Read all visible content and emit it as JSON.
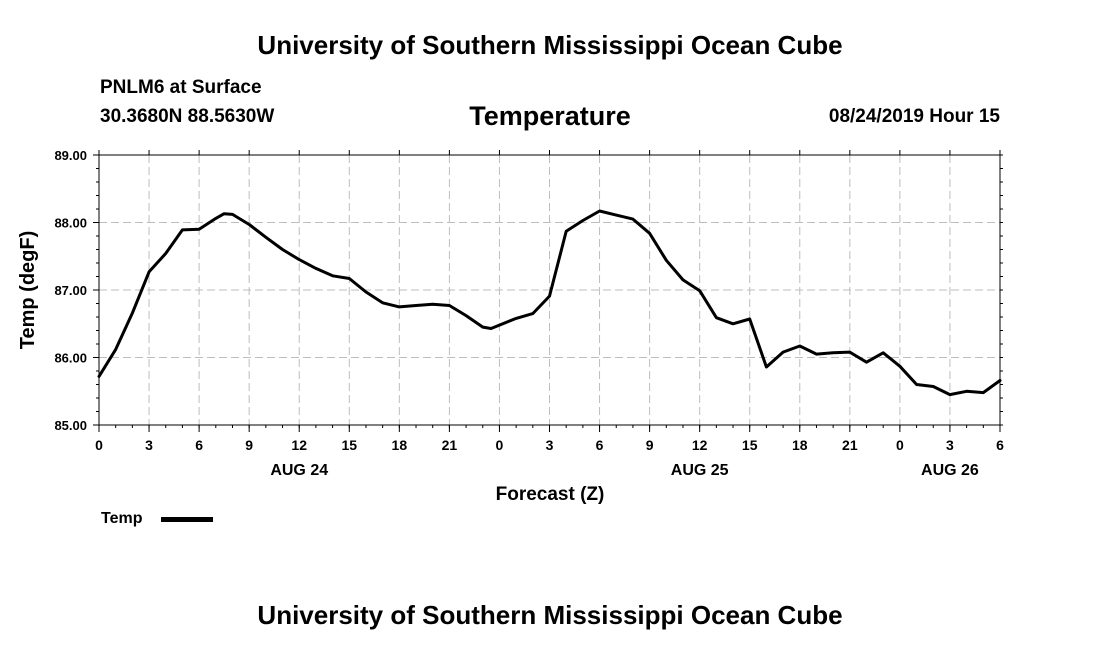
{
  "header": {
    "top_title": "University of Southern Mississippi Ocean Cube",
    "station": "PNLM6 at Surface",
    "coords": "30.3680N 88.5630W",
    "datetime": "08/24/2019 Hour 15",
    "bottom_title": "University of Southern Mississippi Ocean Cube"
  },
  "legend": {
    "label": "Temp"
  },
  "chart_data": {
    "type": "line",
    "title": "Temperature",
    "xlabel": "Forecast (Z)",
    "ylabel": "Temp (degF)",
    "ylim": [
      85.0,
      89.0
    ],
    "xlim": [
      0,
      54
    ],
    "yticks": [
      "85.00",
      "86.00",
      "87.00",
      "88.00",
      "89.00"
    ],
    "xtick_labels": [
      "0",
      "3",
      "6",
      "9",
      "12",
      "15",
      "18",
      "21",
      "0",
      "3",
      "6",
      "9",
      "12",
      "15",
      "18",
      "21",
      "0",
      "3",
      "6"
    ],
    "day_labels": [
      {
        "label": "AUG 24",
        "x": 12
      },
      {
        "label": "AUG 25",
        "x": 36
      },
      {
        "label": "AUG 26",
        "x": 51
      }
    ],
    "grid": true,
    "series": [
      {
        "name": "Temp",
        "color": "#000000",
        "x": [
          0,
          1,
          2,
          3,
          4,
          5,
          6,
          7,
          7.5,
          8,
          9,
          10,
          11,
          12,
          13,
          14,
          15,
          16,
          17,
          18,
          19,
          20,
          21,
          22,
          23,
          23.5,
          24,
          25,
          26,
          27,
          28,
          29,
          30,
          31,
          32,
          33,
          34,
          35,
          36,
          37,
          38,
          39,
          40,
          41,
          42,
          43,
          44,
          45,
          46,
          47,
          48,
          49,
          50,
          51,
          52,
          53,
          54
        ],
        "values": [
          85.72,
          86.12,
          86.66,
          87.27,
          87.54,
          87.89,
          87.9,
          88.06,
          88.13,
          88.12,
          87.97,
          87.78,
          87.6,
          87.45,
          87.32,
          87.21,
          87.17,
          86.97,
          86.81,
          86.75,
          86.77,
          86.79,
          86.77,
          86.62,
          86.45,
          86.43,
          86.48,
          86.58,
          86.65,
          86.91,
          87.87,
          88.03,
          88.17,
          88.11,
          88.05,
          87.84,
          87.44,
          87.15,
          86.99,
          86.59,
          86.5,
          86.57,
          85.86,
          86.08,
          86.17,
          86.05,
          86.07,
          86.08,
          85.93,
          86.07,
          85.87,
          85.6,
          85.57,
          85.45,
          85.5,
          85.48,
          85.66
        ]
      }
    ]
  }
}
